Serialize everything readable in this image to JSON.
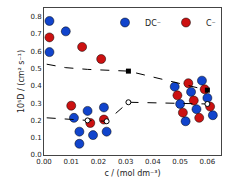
{
  "chart_data": {
    "type": "line",
    "xlabel": "c / (mol dm⁻³)",
    "ylabel": "10⁵D / (cm² s⁻¹)",
    "xlim": [
      0.0,
      0.065
    ],
    "ylim": [
      0.0,
      0.85
    ],
    "xticks": [
      {
        "value": 0.0,
        "label": "0.00"
      },
      0.01,
      0.02,
      0.03,
      0.04,
      0.05,
      0.06
    ],
    "yticks": [
      {
        "value": 0.0,
        "label": "0.0"
      },
      0.1,
      0.2,
      0.3,
      0.4,
      0.5,
      0.6,
      0.7,
      0.8
    ],
    "grid": false,
    "legend": "upper right",
    "series": [
      {
        "name": "DC⁻",
        "type": "scatter",
        "marker": "circle",
        "color": "#1144cc",
        "x": [
          0.002,
          0.002,
          0.008,
          0.011,
          0.013,
          0.013,
          0.016,
          0.018,
          0.022,
          0.023,
          0.048,
          0.05,
          0.052,
          0.054,
          0.056,
          0.058,
          0.06,
          0.062
        ],
        "values": [
          0.775,
          0.595,
          0.715,
          0.215,
          0.135,
          0.065,
          0.255,
          0.115,
          0.275,
          0.135,
          0.395,
          0.295,
          0.195,
          0.365,
          0.265,
          0.43,
          0.33,
          0.23
        ]
      },
      {
        "name": "C⁻",
        "type": "scatter",
        "marker": "circle",
        "color": "#cc1111",
        "x": [
          0.002,
          0.014,
          0.021,
          0.01,
          0.017,
          0.022,
          0.049,
          0.051,
          0.053,
          0.055,
          0.057,
          0.059,
          0.061
        ],
        "values": [
          0.68,
          0.625,
          0.555,
          0.285,
          0.185,
          0.205,
          0.345,
          0.245,
          0.415,
          0.315,
          0.215,
          0.38,
          0.28
        ]
      },
      {
        "type": "line",
        "line_style": "dashed",
        "color": "#000000",
        "x": [
          0.001,
          0.008,
          0.016,
          0.031,
          0.06
        ],
        "values": [
          0.525,
          0.505,
          0.495,
          0.485,
          0.375
        ]
      },
      {
        "type": "scatter",
        "marker": "square",
        "color": "#000000",
        "x": [
          0.031,
          0.06
        ],
        "values": [
          0.485,
          0.375
        ]
      },
      {
        "type": "line",
        "line_style": "dashed",
        "color": "#000000",
        "x": [
          0.001,
          0.01,
          0.016,
          0.023,
          0.031,
          0.06
        ],
        "values": [
          0.215,
          0.205,
          0.2,
          0.195,
          0.305,
          0.295
        ]
      },
      {
        "type": "scatter",
        "marker": "open_circle",
        "color": "#000000",
        "x": [
          0.016,
          0.023,
          0.031,
          0.06
        ],
        "values": [
          0.2,
          0.195,
          0.305,
          0.295
        ]
      }
    ]
  }
}
